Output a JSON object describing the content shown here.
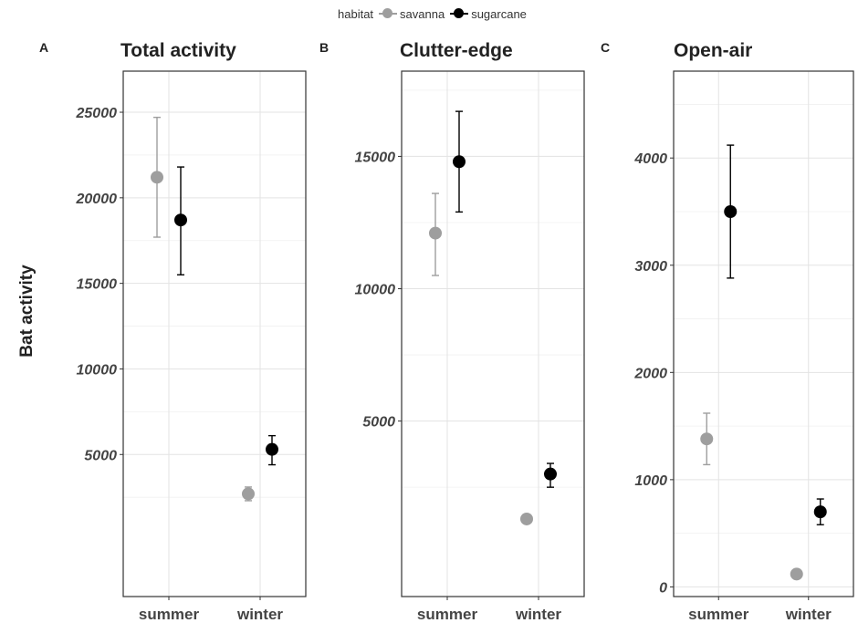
{
  "legend": {
    "title": "habitat",
    "items": [
      {
        "label": "savanna",
        "color": "#9e9e9e"
      },
      {
        "label": "sugarcane",
        "color": "#000000"
      }
    ]
  },
  "ylabel": "Bat activity",
  "chart_data": [
    {
      "type": "scatter",
      "panel_label": "A",
      "title": "Total activity",
      "categories": [
        "summer",
        "winter"
      ],
      "ylim": [
        0,
        26000
      ],
      "yticks": [
        5000,
        10000,
        15000,
        20000,
        25000
      ],
      "series": [
        {
          "name": "savanna",
          "color": "#9e9e9e",
          "values": [
            21200,
            2700
          ],
          "lower": [
            17700,
            2300
          ],
          "upper": [
            24700,
            3100
          ]
        },
        {
          "name": "sugarcane",
          "color": "#000000",
          "values": [
            18700,
            5300
          ],
          "lower": [
            15500,
            4400
          ],
          "upper": [
            21800,
            6100
          ]
        }
      ]
    },
    {
      "type": "scatter",
      "panel_label": "B",
      "title": "Clutter-edge",
      "categories": [
        "summer",
        "winter"
      ],
      "ylim": [
        0,
        17500
      ],
      "yticks": [
        5000,
        10000,
        15000
      ],
      "series": [
        {
          "name": "savanna",
          "color": "#9e9e9e",
          "values": [
            12100,
            1300
          ],
          "lower": [
            10500,
            1200
          ],
          "upper": [
            13600,
            1400
          ]
        },
        {
          "name": "sugarcane",
          "color": "#000000",
          "values": [
            14800,
            3000
          ],
          "lower": [
            12900,
            2500
          ],
          "upper": [
            16700,
            3400
          ]
        }
      ]
    },
    {
      "type": "scatter",
      "panel_label": "C",
      "title": "Open-air",
      "categories": [
        "summer",
        "winter"
      ],
      "ylim": [
        0,
        4300
      ],
      "yticks": [
        0,
        1000,
        2000,
        3000,
        4000
      ],
      "series": [
        {
          "name": "savanna",
          "color": "#9e9e9e",
          "values": [
            1380,
            120
          ],
          "lower": [
            1140,
            100
          ],
          "upper": [
            1620,
            140
          ]
        },
        {
          "name": "sugarcane",
          "color": "#000000",
          "values": [
            3500,
            700
          ],
          "lower": [
            2880,
            580
          ],
          "upper": [
            4120,
            820
          ]
        }
      ]
    }
  ]
}
